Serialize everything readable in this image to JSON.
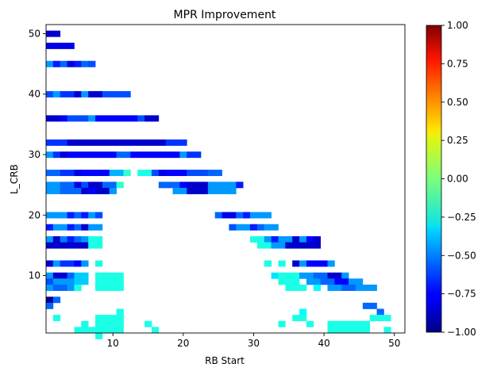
{
  "chart_data": {
    "type": "heatmap",
    "title": "MPR Improvement",
    "xlabel": "RB Start",
    "ylabel": "L_CRB",
    "xlim": [
      0.5,
      51.5
    ],
    "ylim": [
      0.5,
      51.5
    ],
    "x_ticks": [
      10,
      20,
      30,
      40,
      50
    ],
    "x_tick_labels": [
      "10",
      "20",
      "30",
      "40",
      "50"
    ],
    "y_ticks": [
      10,
      20,
      30,
      40,
      50
    ],
    "y_tick_labels": [
      "10",
      "20",
      "30",
      "40",
      "50"
    ],
    "colorbar": {
      "colormap": "jet",
      "vmin": -1.0,
      "vmax": 1.0,
      "ticks": [
        -1.0,
        -0.75,
        -0.5,
        -0.25,
        0.0,
        0.25,
        0.5,
        0.75,
        1.0
      ],
      "tick_labels": [
        "−1.00",
        "−0.75",
        "−0.50",
        "−0.25",
        "0.00",
        "0.25",
        "0.50",
        "0.75",
        "1.00"
      ]
    },
    "rows": [
      {
        "y": 50,
        "x_start": 1,
        "values": [
          -0.85,
          -0.85
        ]
      },
      {
        "y": 48,
        "x_start": 1,
        "values": [
          -0.8,
          -0.8,
          -0.8,
          -0.8
        ]
      },
      {
        "y": 45,
        "x_start": 1,
        "values": [
          -0.45,
          -0.7,
          -0.55,
          -0.8,
          -0.7,
          -0.55,
          -0.6
        ]
      },
      {
        "y": 40,
        "x_start": 1,
        "values": [
          -0.6,
          -0.45,
          -0.65,
          -0.65,
          -0.85,
          -0.45,
          -0.85,
          -0.85,
          -0.6,
          -0.6,
          -0.6,
          -0.6
        ]
      },
      {
        "y": 36,
        "x_start": 1,
        "values": [
          -0.85,
          -0.85,
          -0.75,
          -0.6,
          -0.6,
          -0.6,
          -0.45,
          -0.75,
          -0.75,
          -0.75,
          -0.75,
          -0.75,
          -0.75,
          -0.6,
          -0.85,
          -0.85
        ]
      },
      {
        "y": 32,
        "x_start": 1,
        "values": [
          -0.65,
          -0.65,
          -0.65,
          -0.85,
          -0.85,
          -0.85,
          -0.85,
          -0.85,
          -0.85,
          -0.85,
          -0.85,
          -0.85,
          -0.85,
          -0.85,
          -0.85,
          -0.85,
          -0.85,
          -0.65,
          -0.65,
          -0.65
        ]
      },
      {
        "y": 30,
        "x_start": 1,
        "values": [
          -0.45,
          -0.65,
          -0.85,
          -0.75,
          -0.75,
          -0.75,
          -0.75,
          -0.75,
          -0.75,
          -0.75,
          -0.55,
          -0.55,
          -0.75,
          -0.75,
          -0.75,
          -0.75,
          -0.75,
          -0.75,
          -0.75,
          -0.45,
          -0.65,
          -0.65
        ]
      },
      {
        "y": 27,
        "x_start": 1,
        "values": [
          -0.55,
          -0.55,
          -0.65,
          -0.65,
          -0.8,
          -0.75,
          -0.75,
          -0.75,
          -0.75,
          -0.4,
          -0.4,
          -0.15,
          null,
          -0.2,
          -0.2,
          -0.6,
          -0.8,
          -0.75,
          -0.75,
          -0.75,
          -0.6,
          -0.6,
          -0.6,
          -0.55,
          -0.55
        ]
      },
      {
        "y": 25,
        "x_start": 1,
        "values": [
          -0.45,
          -0.45,
          -0.55,
          -0.55,
          -0.8,
          -0.6,
          -0.85,
          -0.85,
          -0.55,
          -0.55,
          -0.15,
          null,
          null,
          null,
          null,
          null,
          -0.55,
          -0.55,
          -0.55,
          -0.75,
          -0.85,
          -0.85,
          -0.85,
          -0.45,
          -0.45,
          -0.45,
          -0.45,
          -0.7
        ]
      },
      {
        "y": 24,
        "x_start": 1,
        "values": [
          -0.45,
          -0.45,
          -0.55,
          -0.55,
          -0.55,
          -0.85,
          -0.75,
          -0.85,
          -0.85,
          -0.45,
          null,
          null,
          null,
          null,
          null,
          null,
          null,
          null,
          -0.45,
          -0.45,
          -0.85,
          -0.85,
          -0.85,
          -0.45,
          -0.45,
          -0.45,
          -0.45
        ]
      },
      {
        "y": 20,
        "x_start": 1,
        "values": [
          -0.45,
          -0.45,
          -0.45,
          -0.7,
          -0.55,
          -0.7,
          -0.45,
          -0.6
        ]
      },
      {
        "y": 20,
        "x_start": 25,
        "values": [
          -0.55,
          -0.8,
          -0.8,
          -0.55,
          -0.7,
          -0.45,
          -0.45,
          -0.45
        ]
      },
      {
        "y": 18,
        "x_start": 1,
        "values": [
          -0.7,
          -0.45,
          -0.45,
          -0.7,
          -0.55,
          -0.85,
          -0.45,
          -0.45
        ]
      },
      {
        "y": 18,
        "x_start": 27,
        "values": [
          -0.6,
          -0.45,
          -0.45,
          -0.7,
          -0.55,
          -0.45,
          -0.45
        ]
      },
      {
        "y": 16,
        "x_start": 1,
        "values": [
          -0.45,
          -0.85,
          -0.5,
          -0.7,
          -0.55,
          -0.45,
          -0.2,
          -0.2
        ]
      },
      {
        "y": 16,
        "x_start": 30,
        "values": [
          -0.2,
          -0.2,
          -0.45,
          -0.7,
          -0.45,
          -0.45,
          -0.85,
          -0.45,
          -0.75,
          -0.85
        ]
      },
      {
        "y": 15,
        "x_start": 1,
        "values": [
          -0.85,
          -0.85,
          -0.85,
          -0.85,
          -0.85,
          -0.85,
          -0.2,
          -0.2
        ]
      },
      {
        "y": 15,
        "x_start": 31,
        "values": [
          -0.2,
          -0.2,
          -0.45,
          -0.45,
          -0.85,
          -0.85,
          -0.85,
          -0.85,
          -0.85
        ]
      },
      {
        "y": 12,
        "x_start": 1,
        "values": [
          -0.85,
          -0.45,
          -0.65,
          -0.65,
          -0.75,
          -0.45,
          null,
          -0.2
        ]
      },
      {
        "y": 12,
        "x_start": 32,
        "values": [
          -0.2,
          null,
          -0.2,
          null,
          -0.85,
          -0.45,
          -0.75,
          -0.75,
          -0.75,
          -0.45
        ]
      },
      {
        "y": 10,
        "x_start": 1,
        "values": [
          -0.45,
          -0.85,
          -0.85,
          -0.55,
          -0.35,
          -0.35,
          null,
          -0.2,
          -0.2,
          -0.2,
          -0.2
        ]
      },
      {
        "y": 10,
        "x_start": 33,
        "values": [
          -0.3,
          -0.2,
          -0.2,
          -0.2,
          -0.45,
          -0.45,
          -0.55,
          -0.55,
          -0.85,
          -0.85,
          -0.45
        ]
      },
      {
        "y": 9,
        "x_start": 1,
        "values": [
          -0.6,
          -0.45,
          -0.45,
          -0.45,
          -0.35,
          -0.35,
          null,
          -0.2,
          -0.2,
          -0.2,
          -0.2
        ]
      },
      {
        "y": 9,
        "x_start": 34,
        "values": [
          -0.2,
          -0.2,
          -0.2,
          null,
          -0.45,
          -0.45,
          -0.55,
          -0.55,
          -0.75,
          -0.75,
          -0.45,
          -0.45
        ]
      },
      {
        "y": 8,
        "x_start": 1,
        "values": [
          -0.45,
          -0.55,
          -0.55,
          -0.45,
          -0.2,
          null,
          null,
          -0.2,
          -0.2,
          -0.2,
          -0.2
        ]
      },
      {
        "y": 8,
        "x_start": 35,
        "values": [
          -0.2,
          -0.2,
          -0.2,
          null,
          -0.25,
          null,
          -0.45,
          -0.45,
          -0.55,
          -0.55,
          -0.45,
          -0.45,
          -0.45
        ]
      },
      {
        "y": 6,
        "x_start": 1,
        "values": [
          -0.95,
          -0.55
        ]
      },
      {
        "y": 5,
        "x_start": 1,
        "values": [
          -0.55
        ]
      },
      {
        "y": 5,
        "x_start": 46,
        "values": [
          -0.55,
          -0.55
        ]
      },
      {
        "y": 4,
        "x_start": 11,
        "values": [
          -0.2
        ]
      },
      {
        "y": 4,
        "x_start": 37,
        "values": [
          -0.25
        ]
      },
      {
        "y": 4,
        "x_start": 48,
        "values": [
          -0.55
        ]
      },
      {
        "y": 3,
        "x_start": 2,
        "values": [
          -0.2
        ]
      },
      {
        "y": 3,
        "x_start": 8,
        "values": [
          -0.2,
          -0.2,
          -0.2,
          -0.2
        ]
      },
      {
        "y": 3,
        "x_start": 36,
        "values": [
          -0.2,
          -0.2
        ]
      },
      {
        "y": 3,
        "x_start": 47,
        "values": [
          -0.2,
          -0.2,
          -0.2
        ]
      },
      {
        "y": 2,
        "x_start": 6,
        "values": [
          -0.2
        ]
      },
      {
        "y": 2,
        "x_start": 8,
        "values": [
          -0.2,
          -0.2
        ]
      },
      {
        "y": 2,
        "x_start": 10,
        "values": [
          -0.2,
          -0.2
        ]
      },
      {
        "y": 2,
        "x_start": 15,
        "values": [
          -0.2
        ]
      },
      {
        "y": 2,
        "x_start": 34,
        "values": [
          -0.2
        ]
      },
      {
        "y": 2,
        "x_start": 38,
        "values": [
          -0.2
        ]
      },
      {
        "y": 2,
        "x_start": 41,
        "values": [
          -0.2,
          -0.2,
          -0.2,
          -0.2,
          -0.2,
          -0.2
        ]
      },
      {
        "y": 1,
        "x_start": 5,
        "values": [
          -0.2,
          -0.2,
          -0.2,
          -0.2,
          -0.2,
          -0.2,
          -0.2
        ]
      },
      {
        "y": 1,
        "x_start": 16,
        "values": [
          -0.2
        ]
      },
      {
        "y": 1,
        "x_start": 41,
        "values": [
          -0.2,
          -0.2,
          -0.2,
          -0.2,
          -0.2,
          -0.2
        ]
      },
      {
        "y": 1,
        "x_start": 49,
        "values": [
          -0.2
        ]
      },
      {
        "y": 0,
        "x_start": 8,
        "values": [
          -0.2
        ]
      }
    ]
  }
}
